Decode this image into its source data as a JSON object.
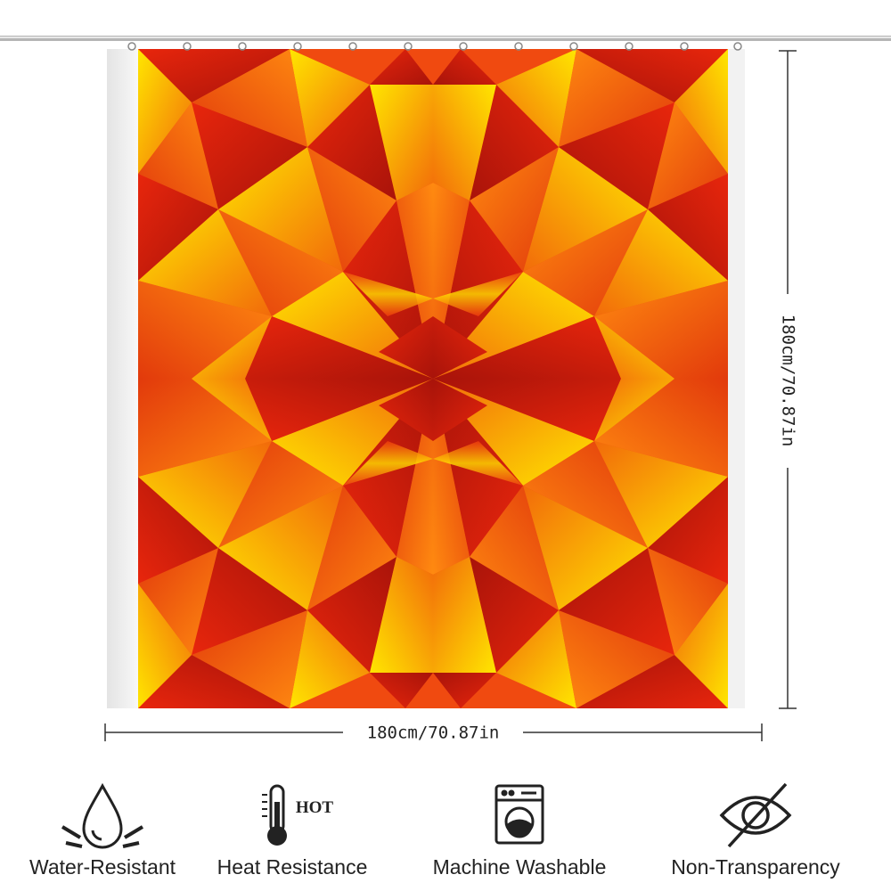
{
  "dimensions": {
    "height": "180cm/70.87in",
    "width": "180cm/70.87in"
  },
  "features": [
    {
      "label": "Water-Resistant"
    },
    {
      "label": "Heat Resistance",
      "icon_text": "HOT"
    },
    {
      "label": "Machine Washable"
    },
    {
      "label": "Non-Transparency"
    }
  ]
}
